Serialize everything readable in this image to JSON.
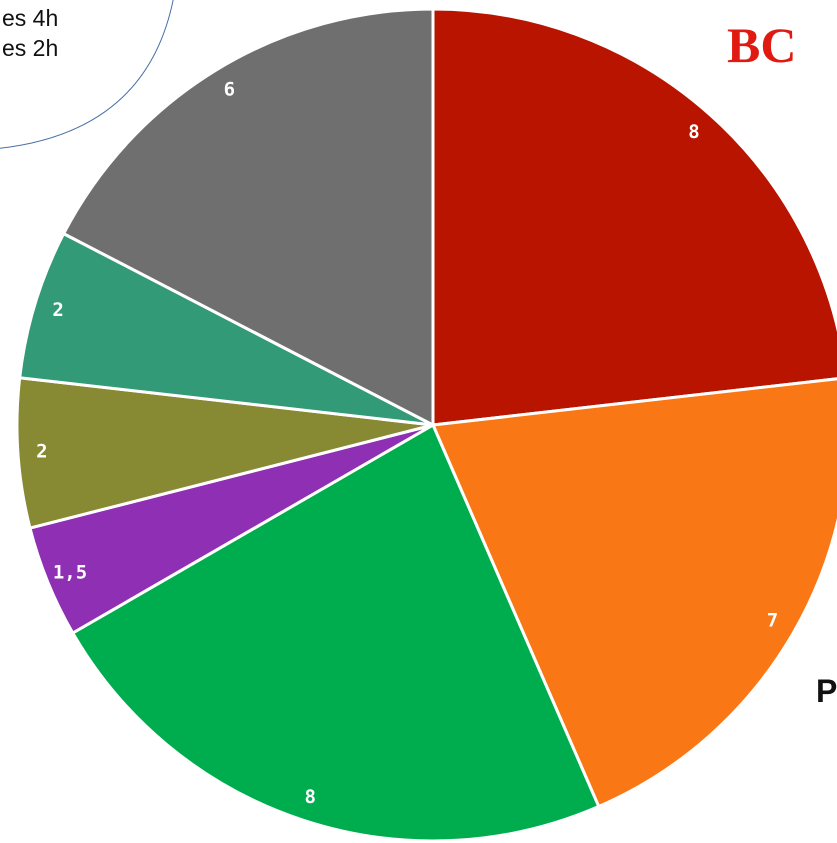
{
  "chart_data": {
    "type": "pie",
    "values": [
      8,
      7,
      8,
      1.5,
      2,
      2,
      6
    ],
    "value_labels": [
      "8",
      "7",
      "8",
      "1,5",
      "2",
      "2",
      "6"
    ],
    "colors": [
      "#b81400",
      "#fa7716",
      "#00ad4e",
      "#8e2fb4",
      "#888933",
      "#339a77",
      "#6f6f6f"
    ],
    "annotations": [
      "es 4h",
      "es 2h",
      "BC",
      "P"
    ]
  }
}
